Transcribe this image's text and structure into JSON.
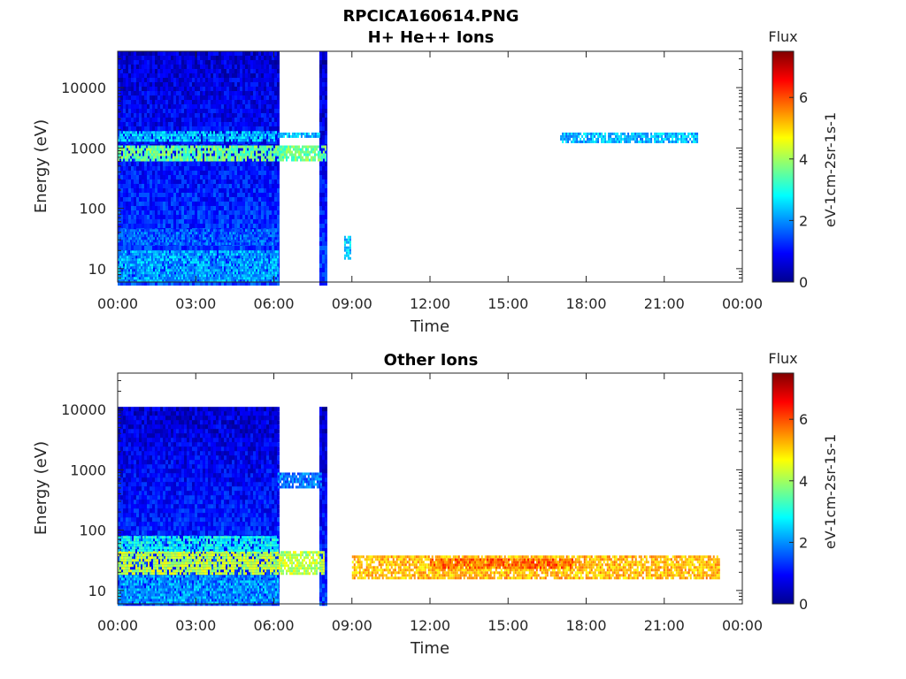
{
  "figure": {
    "title": "RPCICA160614.PNG"
  },
  "chart_data": [
    {
      "type": "heatmap",
      "title": "H+ He++ Ions",
      "xlabel": "Time",
      "ylabel": "Energy (eV)",
      "x_ticks": [
        "00:00",
        "03:00",
        "06:00",
        "09:00",
        "12:00",
        "15:00",
        "18:00",
        "21:00",
        "00:00"
      ],
      "x_range_hours": [
        0,
        24
      ],
      "y_scale": "log",
      "y_ticks": [
        10,
        100,
        1000,
        10000
      ],
      "y_tick_labels": [
        "10",
        "100",
        "1000",
        "10000"
      ],
      "y_range": [
        6,
        40000
      ],
      "colorbar": {
        "label": "Flux",
        "units": "eV-1cm-2sr-1s-1",
        "range": [
          0,
          7.5
        ],
        "ticks": [
          0,
          2,
          4,
          6
        ],
        "tick_labels": [
          "0",
          "2",
          "4",
          "6"
        ],
        "colormap": "jet"
      },
      "segments": [
        {
          "x_start": 0.0,
          "x_end": 6.15,
          "e_min": 6,
          "e_max": 40000,
          "flux_base": 0.6
        },
        {
          "x_start": 7.75,
          "x_end": 8.05,
          "e_min": 6,
          "e_max": 40000,
          "flux_base": 0.5
        }
      ],
      "bands": [
        {
          "x_start": 0.0,
          "x_end": 8.0,
          "e_min": 600,
          "e_max": 1100,
          "flux": 3.6
        },
        {
          "x_start": 0.0,
          "x_end": 6.1,
          "e_min": 1400,
          "e_max": 1900,
          "flux": 2.4
        },
        {
          "x_start": 0.0,
          "x_end": 6.15,
          "e_min": 6,
          "e_max": 20,
          "flux": 2.2
        },
        {
          "x_start": 0.0,
          "x_end": 6.15,
          "e_min": 25,
          "e_max": 45,
          "flux": 1.6
        },
        {
          "x_start": 6.15,
          "x_end": 7.8,
          "e_min": 1500,
          "e_max": 1800,
          "flux": 2.3
        },
        {
          "x_start": 17.0,
          "x_end": 22.3,
          "e_min": 1300,
          "e_max": 1800,
          "flux": 2.3
        },
        {
          "x_start": 8.7,
          "x_end": 8.95,
          "e_min": 15,
          "e_max": 35,
          "flux": 2.4
        }
      ]
    },
    {
      "type": "heatmap",
      "title": "Other Ions",
      "xlabel": "Time",
      "ylabel": "Energy (eV)",
      "x_ticks": [
        "00:00",
        "03:00",
        "06:00",
        "09:00",
        "12:00",
        "15:00",
        "18:00",
        "21:00",
        "00:00"
      ],
      "x_range_hours": [
        0,
        24
      ],
      "y_scale": "log",
      "y_ticks": [
        10,
        100,
        1000,
        10000
      ],
      "y_tick_labels": [
        "10",
        "100",
        "1000",
        "10000"
      ],
      "y_range": [
        6,
        40000
      ],
      "colorbar": {
        "label": "Flux",
        "units": "eV-1cm-2sr-1s-1",
        "range": [
          0,
          7.5
        ],
        "ticks": [
          0,
          2,
          4,
          6
        ],
        "tick_labels": [
          "0",
          "2",
          "4",
          "6"
        ],
        "colormap": "jet"
      },
      "segments": [
        {
          "x_start": 0.0,
          "x_end": 6.15,
          "e_min": 6,
          "e_max": 11000,
          "flux_base": 0.6
        },
        {
          "x_start": 7.75,
          "x_end": 8.05,
          "e_min": 6,
          "e_max": 11000,
          "flux_base": 0.5
        }
      ],
      "bands": [
        {
          "x_start": 0.0,
          "x_end": 7.9,
          "e_min": 20,
          "e_max": 45,
          "flux": 4.2
        },
        {
          "x_start": 0.0,
          "x_end": 6.15,
          "e_min": 45,
          "e_max": 80,
          "flux": 2.8
        },
        {
          "x_start": 0.0,
          "x_end": 6.15,
          "e_min": 6,
          "e_max": 18,
          "flux": 2.1
        },
        {
          "x_start": 6.15,
          "x_end": 7.8,
          "e_min": 500,
          "e_max": 900,
          "flux": 1.8
        },
        {
          "x_start": 9.0,
          "x_end": 23.1,
          "e_min": 16,
          "e_max": 38,
          "flux": 5.2
        },
        {
          "x_start": 12.0,
          "x_end": 17.5,
          "e_min": 24,
          "e_max": 34,
          "flux": 5.8
        }
      ]
    }
  ]
}
